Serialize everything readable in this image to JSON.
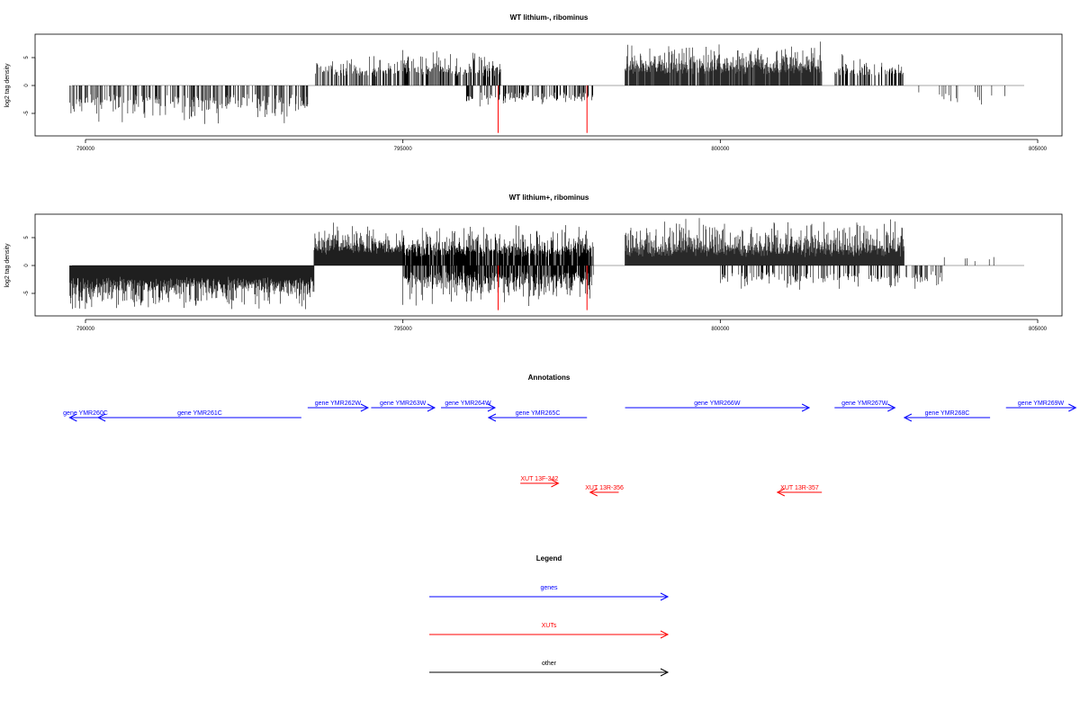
{
  "colors": {
    "gene": "#0000ff",
    "xut": "#ff0000",
    "other": "#000000",
    "signal": "#000000",
    "highlight": "#ff0000",
    "baseline": "#888888"
  },
  "chart_data": [
    {
      "type": "bar",
      "title": "WT lithium-, ribominus",
      "ylabel": "log2 tag density",
      "xlim": [
        789000,
        805700
      ],
      "ylim": [
        -9,
        9
      ],
      "x_ticks": [
        790000,
        795000,
        800000,
        805000
      ],
      "x_tick_labels": [
        "790000",
        "795000",
        "800000",
        "805000"
      ],
      "y_ticks": [
        -5,
        0,
        5
      ],
      "y_tick_labels": [
        "-5",
        "0",
        "5"
      ],
      "grid": false,
      "signal_segments": [
        {
          "start": 789750,
          "end": 793500,
          "strand": "minus",
          "min": 1.5,
          "max": 6.5,
          "density": 0.45
        },
        {
          "start": 793600,
          "end": 795000,
          "strand": "plus",
          "min": 1.5,
          "max": 4.5,
          "density": 0.5
        },
        {
          "start": 795000,
          "end": 796550,
          "strand": "plus",
          "min": 1.5,
          "max": 6,
          "density": 0.55
        },
        {
          "start": 796000,
          "end": 798000,
          "strand": "minus",
          "min": 1,
          "max": 3,
          "density": 0.4
        },
        {
          "start": 798500,
          "end": 801600,
          "strand": "plus",
          "min": 2,
          "max": 7,
          "density": 0.9
        },
        {
          "start": 801800,
          "end": 802900,
          "strand": "plus",
          "min": 1.5,
          "max": 5,
          "density": 0.5
        },
        {
          "start": 802900,
          "end": 804500,
          "strand": "minus",
          "min": 1,
          "max": 3,
          "density": 0.08
        }
      ],
      "highlights": [
        {
          "x": 796500,
          "value": -8.5
        },
        {
          "x": 797900,
          "value": -8.5
        }
      ]
    },
    {
      "type": "bar",
      "title": "WT lithium+, ribominus",
      "ylabel": "log2 tag density",
      "xlim": [
        789000,
        805700
      ],
      "ylim": [
        -9,
        9
      ],
      "x_ticks": [
        790000,
        795000,
        800000,
        805000
      ],
      "x_tick_labels": [
        "790000",
        "795000",
        "800000",
        "805000"
      ],
      "y_ticks": [
        -5,
        0,
        5
      ],
      "y_tick_labels": [
        "-5",
        "0",
        "5"
      ],
      "grid": false,
      "signal_segments": [
        {
          "start": 789750,
          "end": 793600,
          "strand": "minus",
          "min": 2,
          "max": 8,
          "density": 1.2
        },
        {
          "start": 793600,
          "end": 795000,
          "strand": "plus",
          "min": 2,
          "max": 7,
          "density": 1.0
        },
        {
          "start": 795000,
          "end": 798000,
          "strand": "plus",
          "min": 1.5,
          "max": 7,
          "density": 0.9
        },
        {
          "start": 795000,
          "end": 798000,
          "strand": "minus",
          "min": 1,
          "max": 7,
          "density": 0.8
        },
        {
          "start": 798500,
          "end": 802900,
          "strand": "plus",
          "min": 1.5,
          "max": 8,
          "density": 1.2
        },
        {
          "start": 800000,
          "end": 803500,
          "strand": "minus",
          "min": 1,
          "max": 4,
          "density": 0.3
        },
        {
          "start": 803500,
          "end": 804600,
          "strand": "plus",
          "min": 0.5,
          "max": 1.5,
          "density": 0.05
        }
      ],
      "highlights": [
        {
          "x": 796500,
          "value": -8
        },
        {
          "x": 797900,
          "value": -8
        }
      ]
    }
  ],
  "annotations": {
    "title": "Annotations",
    "genes": [
      {
        "label": "gene YMR260C",
        "start": 789750,
        "end": 790250,
        "strand": "-"
      },
      {
        "label": "gene YMR261C",
        "start": 790200,
        "end": 793400,
        "strand": "-"
      },
      {
        "label": "gene YMR262W",
        "start": 793500,
        "end": 794450,
        "strand": "+"
      },
      {
        "label": "gene YMR263W",
        "start": 794500,
        "end": 795500,
        "strand": "+"
      },
      {
        "label": "gene YMR264W",
        "start": 795600,
        "end": 796450,
        "strand": "+"
      },
      {
        "label": "gene YMR265C",
        "start": 796350,
        "end": 797900,
        "strand": "-"
      },
      {
        "label": "gene YMR266W",
        "start": 798500,
        "end": 801400,
        "strand": "+"
      },
      {
        "label": "gene YMR267W",
        "start": 801800,
        "end": 802750,
        "strand": "+"
      },
      {
        "label": "gene YMR268C",
        "start": 802900,
        "end": 804250,
        "strand": "-"
      },
      {
        "label": "gene YMR269W",
        "start": 804500,
        "end": 805600,
        "strand": "+"
      }
    ],
    "xuts": [
      {
        "label": "XUT 13F-342",
        "start": 796850,
        "end": 797450,
        "strand": "+"
      },
      {
        "label": "XUT 13R-356",
        "start": 797950,
        "end": 798400,
        "strand": "-"
      },
      {
        "label": "XUT 13R-357",
        "start": 800900,
        "end": 801600,
        "strand": "-"
      }
    ]
  },
  "legend": {
    "title": "Legend",
    "items": [
      {
        "label": "genes",
        "color": "#0000ff"
      },
      {
        "label": "XUTs",
        "color": "#ff0000"
      },
      {
        "label": "other",
        "color": "#000000"
      }
    ]
  }
}
